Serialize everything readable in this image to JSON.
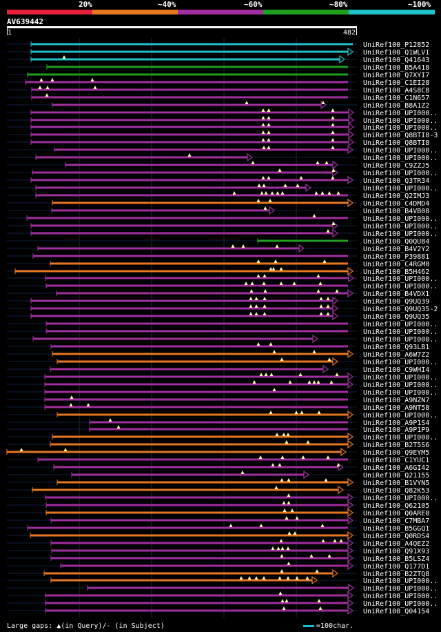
{
  "legend": {
    "segments": [
      {
        "label": "20%",
        "color": "#e8203a"
      },
      {
        "label": "~40%",
        "color": "#e87820"
      },
      {
        "label": "~60%",
        "color": "#a030a0"
      },
      {
        "label": "~80%",
        "color": "#20a020"
      },
      {
        "label": "~100%",
        "color": "#20c0c8"
      }
    ]
  },
  "query": {
    "name": "AV639442",
    "start": "1",
    "end": "482"
  },
  "colors": {
    "cyan": "#20c0c8",
    "green": "#20a020",
    "purple": "#a030a0",
    "orange": "#e87820",
    "red": "#e8203a",
    "bg": "#000000",
    "track": "#102040"
  },
  "hits": [
    {
      "label": "UniRef100_P12852",
      "color": "cyan",
      "s": 45,
      "e": 512,
      "arrow": false,
      "marks": []
    },
    {
      "label": "UniRef100_Q1WLV1",
      "color": "cyan",
      "s": 45,
      "e": 512,
      "arrow": true,
      "marks": []
    },
    {
      "label": "UniRef100_Q41643",
      "color": "cyan",
      "s": 45,
      "e": 500,
      "arrow": true,
      "marks": [
        93
      ]
    },
    {
      "label": "UniRef100_B5A418",
      "color": "green",
      "s": 68,
      "e": 505,
      "arrow": false,
      "marks": []
    },
    {
      "label": "UniRef100_Q7XYI7",
      "color": "green",
      "s": 40,
      "e": 505,
      "arrow": false,
      "marks": []
    },
    {
      "label": "UniRef100_C1EI28",
      "color": "purple",
      "s": 37,
      "e": 505,
      "arrow": false,
      "marks": [
        60,
        76,
        134
      ]
    },
    {
      "label": "UniRef100_A4S8C8",
      "color": "purple",
      "s": 46,
      "e": 505,
      "arrow": false,
      "marks": [
        58,
        69,
        138
      ]
    },
    {
      "label": "UniRef100_C1N657",
      "color": "purple",
      "s": 46,
      "e": 505,
      "arrow": false,
      "marks": [
        68
      ]
    },
    {
      "label": "UniRef100_B8A1Z2",
      "color": "purple",
      "s": 76,
      "e": 473,
      "arrow": true,
      "marks": [
        358,
        469
      ]
    },
    {
      "label": "UniRef100_UPI000..",
      "color": "purple",
      "s": 45,
      "e": 513,
      "arrow": true,
      "marks": [
        382,
        390,
        483
      ]
    },
    {
      "label": "UniRef100_UPI000..",
      "color": "purple",
      "s": 45,
      "e": 513,
      "arrow": true,
      "marks": [
        382,
        390,
        483
      ]
    },
    {
      "label": "UniRef100_UPI000..",
      "color": "purple",
      "s": 45,
      "e": 513,
      "arrow": true,
      "marks": [
        382,
        390,
        483
      ]
    },
    {
      "label": "UniRef100_Q8BTI8-3",
      "color": "purple",
      "s": 45,
      "e": 513,
      "arrow": true,
      "marks": [
        382,
        390,
        483
      ]
    },
    {
      "label": "UniRef100_Q8BTI8",
      "color": "purple",
      "s": 45,
      "e": 513,
      "arrow": true,
      "marks": [
        382,
        390,
        483
      ]
    },
    {
      "label": "UniRef100_UPI000..",
      "color": "purple",
      "s": 79,
      "e": 512,
      "arrow": true,
      "marks": [
        383,
        390,
        483
      ]
    },
    {
      "label": "UniRef100_UPI000..",
      "color": "purple",
      "s": 52,
      "e": 366,
      "arrow": true,
      "marks": [
        275
      ]
    },
    {
      "label": "UniRef100_C9ZZJ5",
      "color": "purple",
      "s": 95,
      "e": 490,
      "arrow": true,
      "marks": [
        367,
        461,
        474
      ]
    },
    {
      "label": "UniRef100_UPI000..",
      "color": "purple",
      "s": 47,
      "e": 490,
      "arrow": true,
      "marks": [
        406,
        484
      ]
    },
    {
      "label": "UniRef100_Q3TR34",
      "color": "purple",
      "s": 45,
      "e": 512,
      "arrow": true,
      "marks": [
        382,
        390,
        437,
        483
      ]
    },
    {
      "label": "UniRef100_UPI000..",
      "color": "purple",
      "s": 52,
      "e": 451,
      "arrow": true,
      "marks": [
        376,
        383,
        414,
        432
      ]
    },
    {
      "label": "UniRef100_Q2IMJ3",
      "color": "purple",
      "s": 52,
      "e": 505,
      "arrow": false,
      "marks": [
        340,
        380,
        386,
        395,
        403,
        410,
        459,
        468,
        478,
        491
      ]
    },
    {
      "label": "UniRef100_C4DMD4",
      "color": "orange",
      "s": 76,
      "e": 512,
      "arrow": true,
      "marks": [
        375,
        392
      ]
    },
    {
      "label": "UniRef100_B4VB08",
      "color": "purple",
      "s": 75,
      "e": 398,
      "arrow": true,
      "marks": [
        385
      ]
    },
    {
      "label": "UniRef100_UPI000..",
      "color": "purple",
      "s": 39,
      "e": 505,
      "arrow": false,
      "marks": [
        456
      ]
    },
    {
      "label": "UniRef100_UPI000..",
      "color": "purple",
      "s": 45,
      "e": 490,
      "arrow": true,
      "marks": [
        484
      ]
    },
    {
      "label": "UniRef100_UPI000..",
      "color": "purple",
      "s": 45,
      "e": 490,
      "arrow": true,
      "marks": [
        476
      ]
    },
    {
      "label": "UniRef100_Q0QU84",
      "color": "green",
      "s": 374,
      "e": 505,
      "arrow": false,
      "marks": []
    },
    {
      "label": "UniRef100_B4V2Y2",
      "color": "purple",
      "s": 55,
      "e": 441,
      "arrow": true,
      "marks": [
        338,
        353,
        402
      ]
    },
    {
      "label": "UniRef100_P39881",
      "color": "purple",
      "s": 48,
      "e": 505,
      "arrow": false,
      "marks": []
    },
    {
      "label": "UniRef100_C4RGM0",
      "color": "orange",
      "s": 73,
      "e": 505,
      "arrow": false,
      "marks": [
        375,
        400,
        471
      ]
    },
    {
      "label": "UniRef100_B5H462",
      "color": "orange",
      "s": 22,
      "e": 512,
      "arrow": true,
      "marks": [
        393,
        397,
        408
      ]
    },
    {
      "label": "UniRef100_UPI000..",
      "color": "purple",
      "s": 66,
      "e": 513,
      "arrow": true,
      "marks": [
        375,
        384,
        462
      ]
    },
    {
      "label": "UniRef100_UPI000..",
      "color": "purple",
      "s": 67,
      "e": 505,
      "arrow": false,
      "marks": [
        357,
        366,
        383,
        408,
        427,
        465
      ]
    },
    {
      "label": "UniRef100_B4VDX1",
      "color": "purple",
      "s": 82,
      "e": 512,
      "arrow": true,
      "marks": [
        365,
        385,
        462,
        489
      ]
    },
    {
      "label": "UniRef100_Q9UQ39",
      "color": "purple",
      "s": 45,
      "e": 490,
      "arrow": true,
      "marks": [
        364,
        372,
        384,
        466,
        476
      ]
    },
    {
      "label": "UniRef100_Q9UQ35-2",
      "color": "purple",
      "s": 45,
      "e": 490,
      "arrow": true,
      "marks": [
        364,
        372,
        384,
        466,
        476
      ]
    },
    {
      "label": "UniRef100_Q9UQ35",
      "color": "purple",
      "s": 45,
      "e": 490,
      "arrow": true,
      "marks": [
        364,
        372,
        384,
        466,
        476
      ]
    },
    {
      "label": "UniRef100_UPI000..",
      "color": "purple",
      "s": 67,
      "e": 505,
      "arrow": false,
      "marks": []
    },
    {
      "label": "UniRef100_UPI000..",
      "color": "purple",
      "s": 67,
      "e": 505,
      "arrow": false,
      "marks": []
    },
    {
      "label": "UniRef100_UPI000..",
      "color": "purple",
      "s": 48,
      "e": 461,
      "arrow": true,
      "marks": []
    },
    {
      "label": "UniRef100_Q93LB1",
      "color": "purple",
      "s": 74,
      "e": 505,
      "arrow": false,
      "marks": [
        375,
        393
      ]
    },
    {
      "label": "UniRef100_A6W7Z2",
      "color": "orange",
      "s": 76,
      "e": 512,
      "arrow": true,
      "marks": [
        398,
        456
      ]
    },
    {
      "label": "UniRef100_UPI000..",
      "color": "orange",
      "s": 83,
      "e": 490,
      "arrow": true,
      "marks": [
        409,
        478
      ]
    },
    {
      "label": "UniRef100_C9WHI4",
      "color": "purple",
      "s": 73,
      "e": 476,
      "arrow": true,
      "marks": []
    },
    {
      "label": "UniRef100_UPI000..",
      "color": "purple",
      "s": 65,
      "e": 512,
      "arrow": true,
      "marks": [
        379,
        386,
        394,
        436,
        489
      ]
    },
    {
      "label": "UniRef100_UPI000..",
      "color": "purple",
      "s": 65,
      "e": 512,
      "arrow": true,
      "marks": [
        369,
        421,
        449,
        456,
        462,
        481
      ]
    },
    {
      "label": "UniRef100_UPI000..",
      "color": "purple",
      "s": 65,
      "e": 505,
      "arrow": false,
      "marks": [
        398
      ]
    },
    {
      "label": "UniRef100_A9NZN7",
      "color": "purple",
      "s": 65,
      "e": 505,
      "arrow": false,
      "marks": [
        104
      ]
    },
    {
      "label": "UniRef100_A9NT58",
      "color": "purple",
      "s": 65,
      "e": 505,
      "arrow": false,
      "marks": [
        103,
        128
      ]
    },
    {
      "label": "UniRef100_UPI000..",
      "color": "orange",
      "s": 83,
      "e": 512,
      "arrow": true,
      "marks": [
        393,
        430,
        438,
        463
      ]
    },
    {
      "label": "UniRef100_A9P1S4",
      "color": "purple",
      "s": 130,
      "e": 505,
      "arrow": false,
      "marks": [
        160
      ]
    },
    {
      "label": "UniRef100_A9P1P9",
      "color": "purple",
      "s": 130,
      "e": 505,
      "arrow": false,
      "marks": [
        172
      ]
    },
    {
      "label": "UniRef100_UPI000..",
      "color": "orange",
      "s": 76,
      "e": 512,
      "arrow": true,
      "marks": [
        402,
        412,
        418
      ]
    },
    {
      "label": "UniRef100_B2T5S6",
      "color": "orange",
      "s": 73,
      "e": 512,
      "arrow": true,
      "marks": [
        416,
        447
      ]
    },
    {
      "label": "UniRef100_Q9EYM5",
      "color": "orange",
      "s": 10,
      "e": 502,
      "arrow": true,
      "marks": [
        31,
        95
      ]
    },
    {
      "label": "UniRef100_C1YUC1",
      "color": "purple",
      "s": 55,
      "e": 505,
      "arrow": false,
      "marks": [
        378,
        410,
        440,
        476
      ]
    },
    {
      "label": "UniRef100_A6GI42",
      "color": "purple",
      "s": 78,
      "e": 498,
      "arrow": true,
      "marks": [
        396,
        406,
        491
      ]
    },
    {
      "label": "UniRef100_Q21155",
      "color": "purple",
      "s": 104,
      "e": 448,
      "arrow": true,
      "marks": [
        352
      ]
    },
    {
      "label": "UniRef100_B1VYN5",
      "color": "orange",
      "s": 83,
      "e": 512,
      "arrow": true,
      "marks": [
        409,
        419,
        473
      ]
    },
    {
      "label": "UniRef100_Q82K53",
      "color": "orange",
      "s": 47,
      "e": 498,
      "arrow": true,
      "marks": [
        401
      ]
    },
    {
      "label": "UniRef100_UPI000..",
      "color": "purple",
      "s": 66,
      "e": 512,
      "arrow": true,
      "marks": [
        419
      ]
    },
    {
      "label": "UniRef100_Q62105",
      "color": "purple",
      "s": 67,
      "e": 512,
      "arrow": true,
      "marks": [
        412,
        419
      ]
    },
    {
      "label": "UniRef100_Q0ARE0",
      "color": "orange",
      "s": 67,
      "e": 512,
      "arrow": true,
      "marks": [
        413,
        424
      ]
    },
    {
      "label": "UniRef100_C7MBA7",
      "color": "purple",
      "s": 74,
      "e": 512,
      "arrow": true,
      "marks": [
        416,
        431
      ]
    },
    {
      "label": "UniRef100_B5GGQ1",
      "color": "purple",
      "s": 40,
      "e": 505,
      "arrow": false,
      "marks": [
        335,
        379,
        468
      ]
    },
    {
      "label": "UniRef100_Q0RDS4",
      "color": "orange",
      "s": 44,
      "e": 512,
      "arrow": true,
      "marks": [
        420,
        428
      ]
    },
    {
      "label": "UniRef100_A4QEZ2",
      "color": "purple",
      "s": 74,
      "e": 512,
      "arrow": true,
      "marks": [
        408,
        469,
        486,
        495
      ]
    },
    {
      "label": "UniRef100_Q91X93",
      "color": "purple",
      "s": 75,
      "e": 512,
      "arrow": true,
      "marks": [
        396,
        404,
        410,
        418
      ]
    },
    {
      "label": "UniRef100_B5LSZ4",
      "color": "purple",
      "s": 74,
      "e": 512,
      "arrow": true,
      "marks": [
        409,
        452,
        478
      ]
    },
    {
      "label": "UniRef100_Q177D1",
      "color": "purple",
      "s": 88,
      "e": 512,
      "arrow": true,
      "marks": [
        419
      ]
    },
    {
      "label": "UniRef100_B2ZTQ8",
      "color": "orange",
      "s": 64,
      "e": 490,
      "arrow": true,
      "marks": [
        409,
        460
      ]
    },
    {
      "label": "UniRef100_UPI000..",
      "color": "orange",
      "s": 74,
      "e": 460,
      "arrow": true,
      "marks": [
        350,
        362,
        372,
        383,
        406,
        418,
        431,
        446
      ]
    },
    {
      "label": "UniRef100_UPI000..",
      "color": "purple",
      "s": 127,
      "e": 513,
      "arrow": true,
      "marks": []
    },
    {
      "label": "UniRef100_UPI000..",
      "color": "purple",
      "s": 66,
      "e": 512,
      "arrow": true,
      "marks": [
        407
      ]
    },
    {
      "label": "UniRef100_UPI000..",
      "color": "purple",
      "s": 66,
      "e": 512,
      "arrow": true,
      "marks": [
        410,
        416,
        463
      ]
    },
    {
      "label": "UniRef100_Q04154",
      "color": "purple",
      "s": 66,
      "e": 512,
      "arrow": true,
      "marks": [
        412,
        465
      ]
    }
  ],
  "footer": {
    "gaps_text": "Large gaps: ▲(in Query)/- (in Subject)",
    "scale_text": "=100char."
  }
}
